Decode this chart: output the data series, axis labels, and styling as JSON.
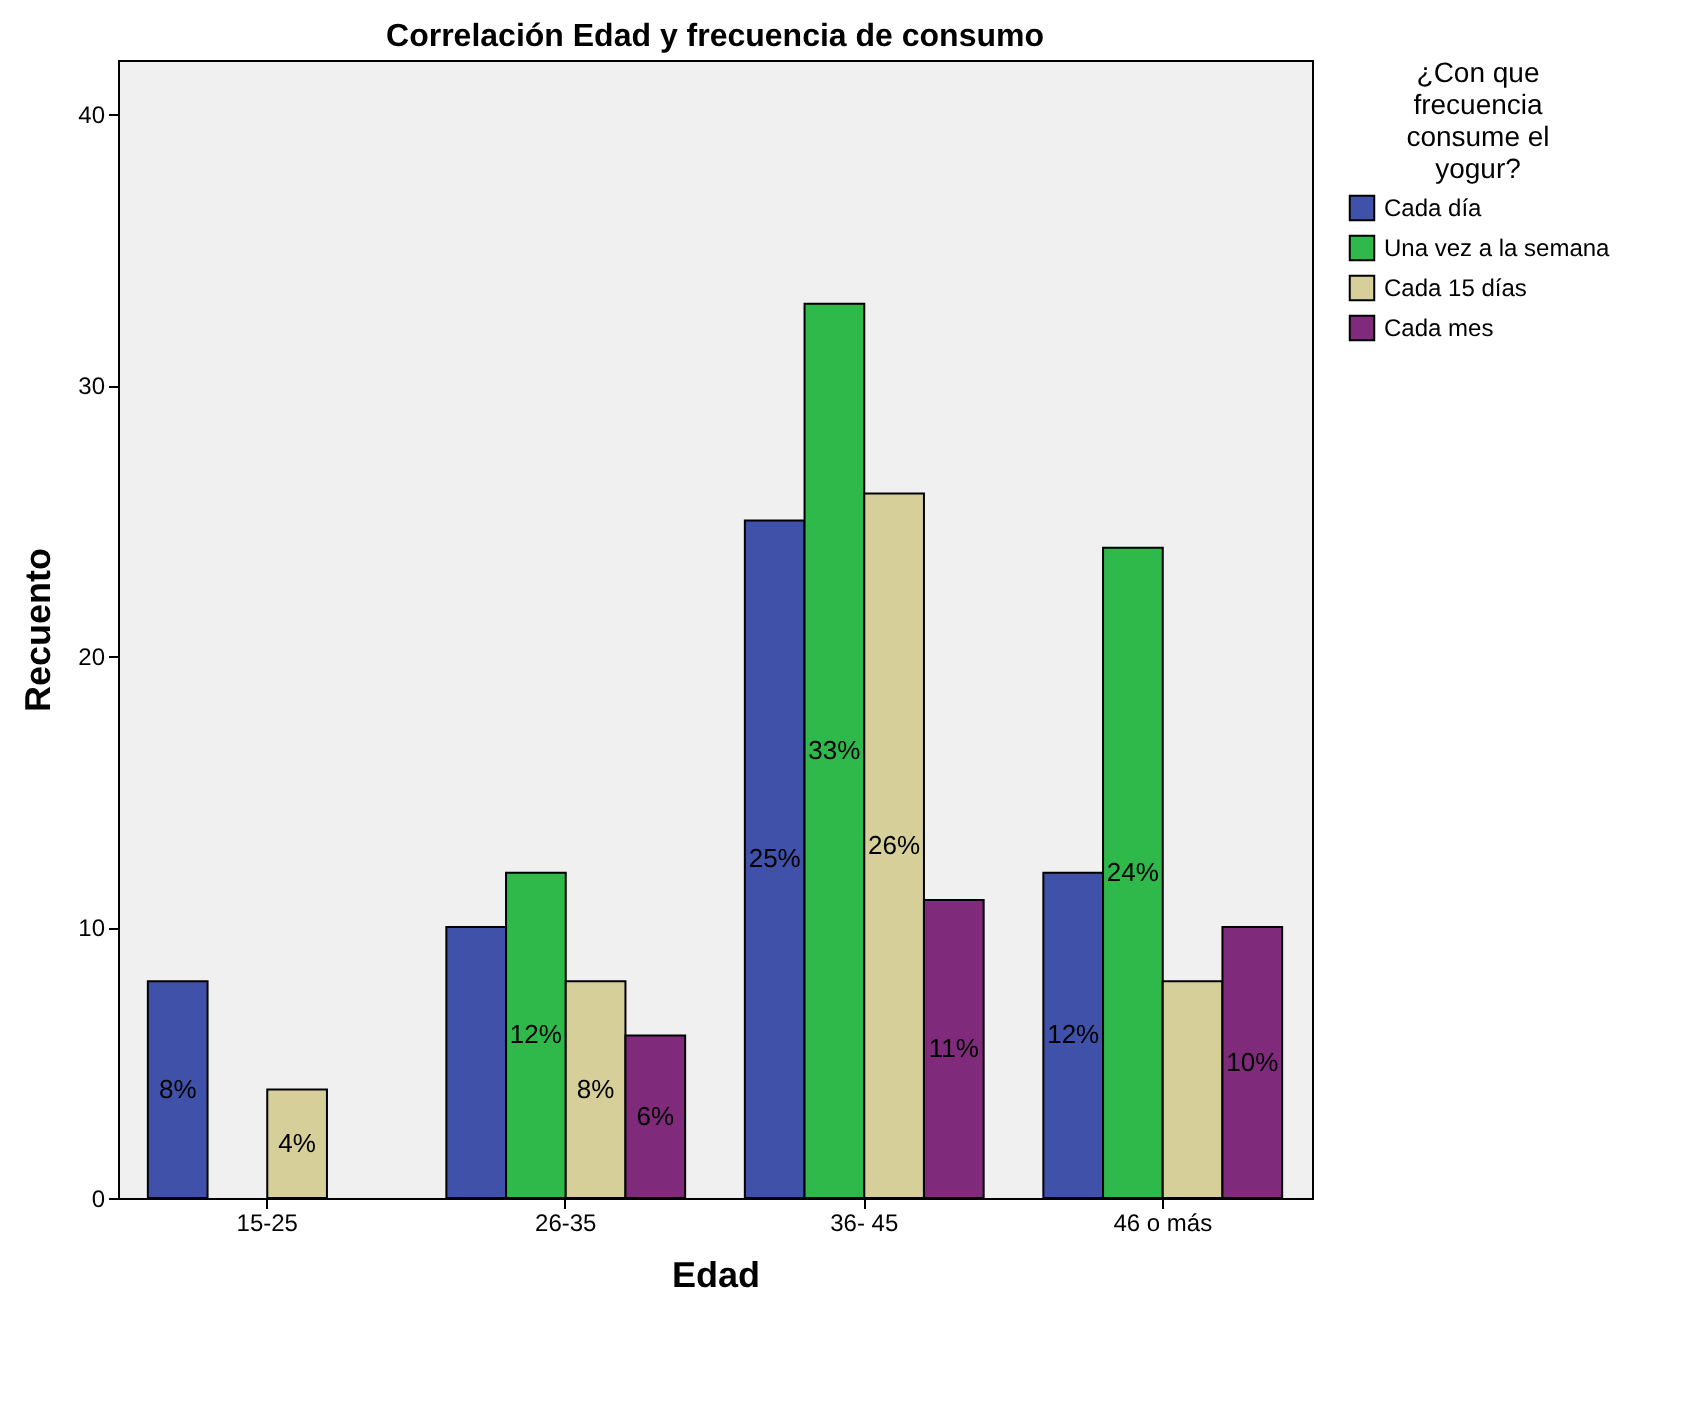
{
  "chart_data": {
    "type": "bar",
    "title": "Correlación Edad y frecuencia de consumo",
    "xlabel": "Edad",
    "ylabel": "Recuento",
    "legend_title": "¿Con que frecuencia consume el yogur?",
    "legend": "top right",
    "categories": [
      "15-25",
      "26-35",
      "36- 45",
      "46 o más"
    ],
    "series": [
      {
        "name": "Cada día",
        "color": "#3f51a8",
        "values": [
          8,
          10,
          25,
          12
        ],
        "value_labels": [
          "8%",
          null,
          "25%",
          "12%"
        ]
      },
      {
        "name": "Una vez a la semana",
        "color": "#2fb94a",
        "values": [
          null,
          12,
          33,
          24
        ],
        "value_labels": [
          null,
          "12%",
          "33%",
          "24%"
        ]
      },
      {
        "name": "Cada 15 días",
        "color": "#d6cf9a",
        "values": [
          4,
          8,
          26,
          8
        ],
        "value_labels": [
          "4%",
          "8%",
          "26%",
          null
        ]
      },
      {
        "name": "Cada mes",
        "color": "#7f2a7a",
        "values": [
          null,
          6,
          11,
          10
        ],
        "value_labels": [
          null,
          "6%",
          "11%",
          "10%"
        ]
      }
    ],
    "ylim": [
      0,
      42
    ],
    "yticks": [
      0,
      10,
      20,
      30,
      40
    ],
    "grid": false
  }
}
